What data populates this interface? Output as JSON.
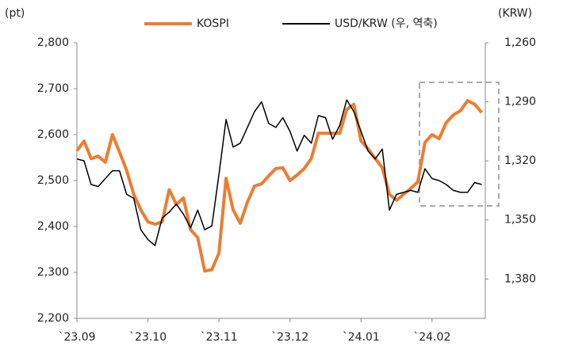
{
  "chart_data": {
    "type": "line",
    "y_label": "(pt)",
    "y2_label": "(KRW)",
    "categories": [
      "`23.09",
      null,
      null,
      null,
      null,
      null,
      null,
      null,
      null,
      null,
      "`23.10",
      null,
      null,
      null,
      null,
      null,
      null,
      null,
      null,
      null,
      "`23.11",
      null,
      null,
      null,
      null,
      null,
      null,
      null,
      null,
      null,
      "`23.12",
      null,
      null,
      null,
      null,
      null,
      null,
      null,
      null,
      null,
      "`24.01",
      null,
      null,
      null,
      null,
      null,
      null,
      null,
      null,
      null,
      "`24.02",
      null,
      null,
      null,
      null,
      null,
      null,
      null
    ],
    "series": [
      {
        "name": "KOSPI",
        "color": "#ed7d31",
        "values": [
          2565,
          2586,
          2548,
          2553,
          2540,
          2600,
          2562,
          2522,
          2470,
          2436,
          2410,
          2405,
          2410,
          2480,
          2448,
          2462,
          2393,
          2376,
          2303,
          2306,
          2342,
          2505,
          2436,
          2407,
          2453,
          2488,
          2493,
          2510,
          2526,
          2528,
          2500,
          2512,
          2526,
          2548,
          2603,
          2603,
          2603,
          2603,
          2655,
          2666,
          2586,
          2569,
          2548,
          2528,
          2470,
          2457,
          2470,
          2483,
          2497,
          2583,
          2600,
          2591,
          2626,
          2643,
          2652,
          2674,
          2666,
          2648
        ]
      },
      {
        "name": "USD/KRW (우, 역축)",
        "color": "#000000",
        "axis": "y2",
        "values": [
          1319,
          1320,
          1332,
          1333,
          1329,
          1325,
          1325,
          1337,
          1339,
          1355,
          1360,
          1363,
          1349,
          1346,
          1342,
          1347,
          1354,
          1345,
          1355,
          1353,
          1327,
          1299,
          1313,
          1311,
          1303,
          1295,
          1290,
          1301,
          1303,
          1298,
          1305,
          1315,
          1307,
          1311,
          1297,
          1298,
          1309,
          1302,
          1289,
          1295,
          1305,
          1315,
          1319,
          1314,
          1345,
          1337,
          1336,
          1335,
          1336,
          1324,
          1329,
          1330,
          1332,
          1335,
          1336,
          1336,
          1331,
          1332
        ]
      }
    ],
    "ylim": [
      2200,
      2800
    ],
    "yticks": [
      {
        "value": 2200,
        "label": "2,200"
      },
      {
        "value": 2300,
        "label": "2,300"
      },
      {
        "value": 2400,
        "label": "2,400"
      },
      {
        "value": 2500,
        "label": "2,500"
      },
      {
        "value": 2600,
        "label": "2,600"
      },
      {
        "value": 2700,
        "label": "2,700"
      },
      {
        "value": 2800,
        "label": "2,800"
      }
    ],
    "y2lim": [
      1260,
      1400
    ],
    "y2_inverted": true,
    "y2ticks": [
      {
        "value": 1260,
        "label": "1,260"
      },
      {
        "value": 1290,
        "label": "1,290"
      },
      {
        "value": 1320,
        "label": "1,320"
      },
      {
        "value": 1350,
        "label": "1,350"
      },
      {
        "value": 1380,
        "label": "1,380"
      }
    ],
    "grid": false,
    "legend": "top"
  }
}
